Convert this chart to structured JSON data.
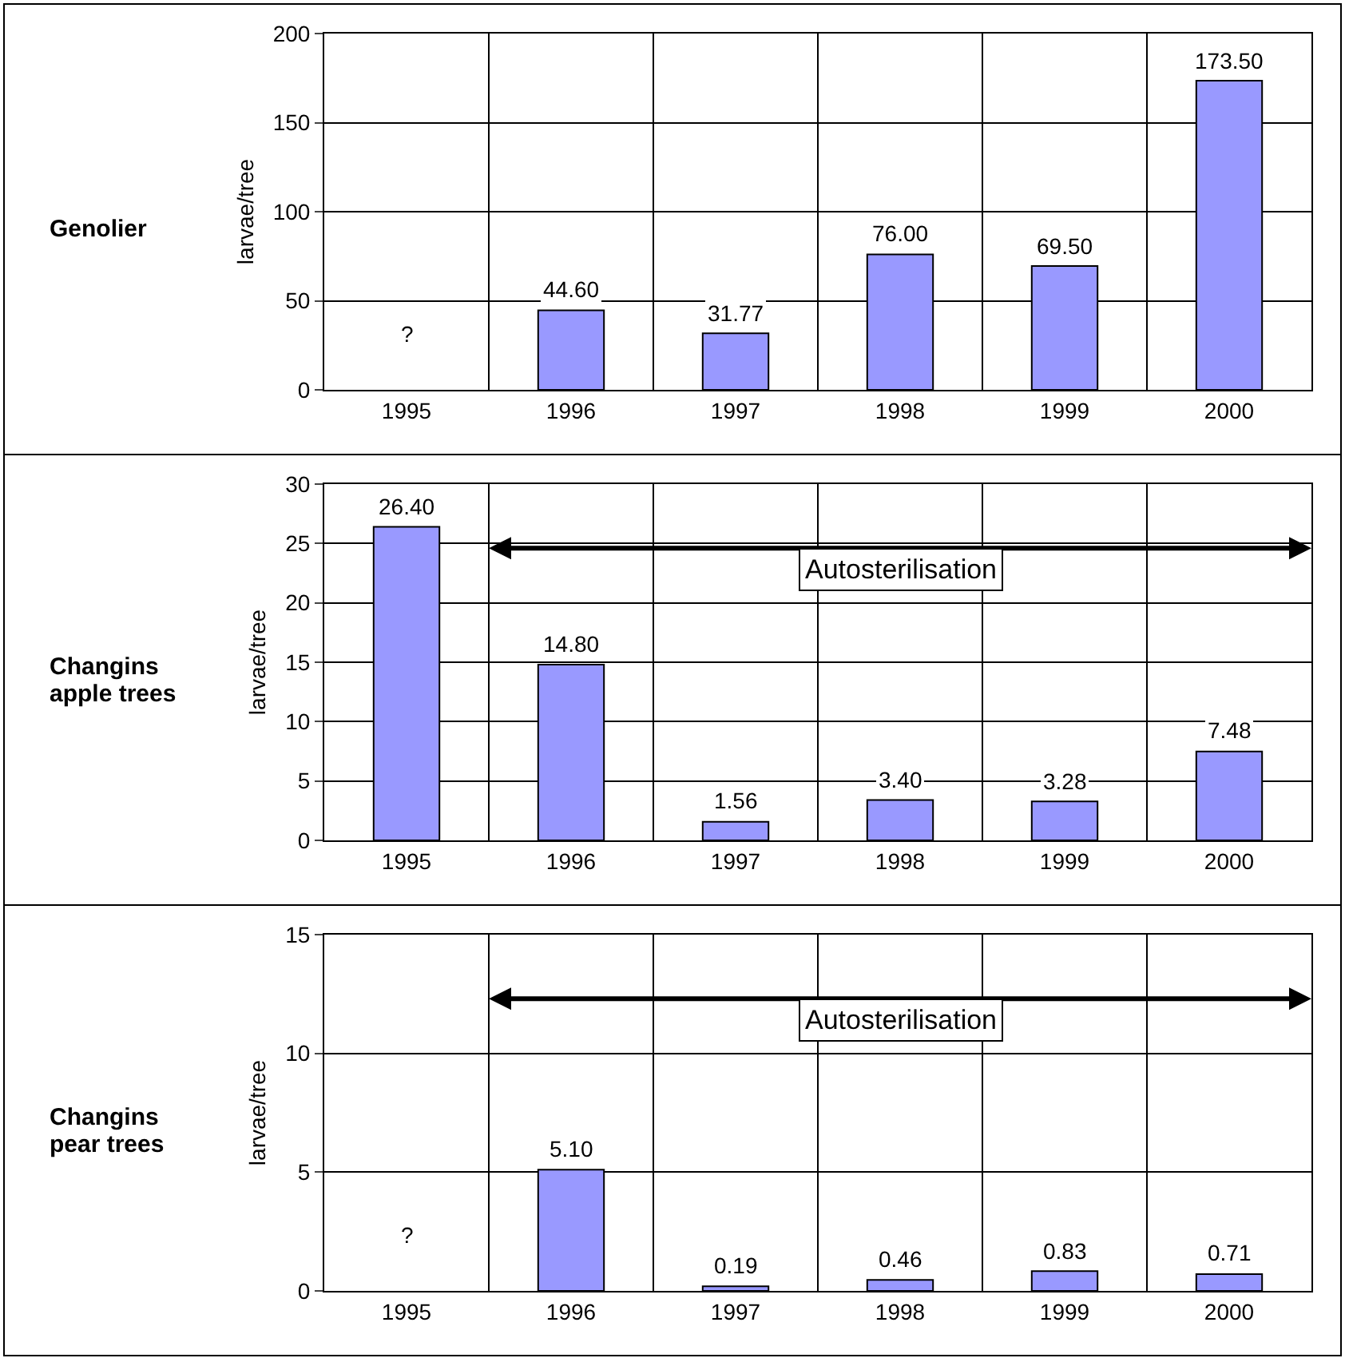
{
  "chart_data": [
    {
      "type": "bar",
      "title": "Genolier",
      "ylabel": "larvae/tree",
      "categories": [
        "1995",
        "1996",
        "1997",
        "1998",
        "1999",
        "2000"
      ],
      "values": [
        null,
        44.6,
        31.77,
        76.0,
        69.5,
        173.5
      ],
      "value_labels": [
        null,
        "44.60",
        "31.77",
        "76.00",
        "69.50",
        "173.50"
      ],
      "color": "#9999ff",
      "ylim": [
        0,
        200
      ],
      "yticks": [
        0,
        50,
        100,
        150,
        200
      ],
      "grid": true,
      "annotations": [
        "?"
      ]
    },
    {
      "type": "bar",
      "title": "Changins apple trees",
      "ylabel": "larvae/tree",
      "categories": [
        "1995",
        "1996",
        "1997",
        "1998",
        "1999",
        "2000"
      ],
      "values": [
        26.4,
        14.8,
        1.56,
        3.4,
        3.28,
        7.48
      ],
      "value_labels": [
        "26.40",
        "14.80",
        "1.56",
        "3.40",
        "3.28",
        "7.48"
      ],
      "color": "#9999ff",
      "ylim": [
        0,
        30
      ],
      "yticks": [
        0,
        5,
        10,
        15,
        20,
        25,
        30
      ],
      "grid": true,
      "annotations": [
        "Autosterilisation"
      ]
    },
    {
      "type": "bar",
      "title": "Changins pear trees",
      "ylabel": "larvae/tree",
      "categories": [
        "1995",
        "1996",
        "1997",
        "1998",
        "1999",
        "2000"
      ],
      "values": [
        null,
        5.1,
        0.19,
        0.46,
        0.83,
        0.71
      ],
      "value_labels": [
        null,
        "5.10",
        "0.19",
        "0.46",
        "0.83",
        "0.71"
      ],
      "color": "#9999ff",
      "ylim": [
        0,
        15
      ],
      "yticks": [
        0,
        5,
        10,
        15
      ],
      "grid": true,
      "annotations": [
        "?",
        "Autosterilisation"
      ]
    }
  ]
}
